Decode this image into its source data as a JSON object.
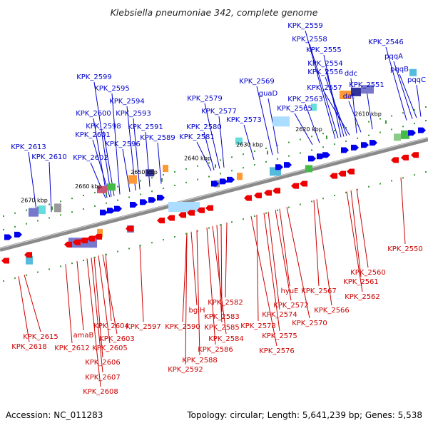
{
  "title": "Klebsiella pneumoniae 342, complete genome",
  "footer": {
    "accession": "Accession: NC_011283",
    "summary": "Topology: circular; Length: 5,641,239 bp; Genes: 5,538"
  },
  "colors": {
    "top_label": "#0000cc",
    "bottom_label": "#cc0000",
    "forward_gene": "#0000ee",
    "reverse_gene": "#ee0000",
    "backbone": "#888888"
  },
  "ticks": [
    "2610 kbp",
    "2620 kbp",
    "2630 kbp",
    "2640 kbp",
    "2650 kbp",
    "2660 kbp",
    "2670 kbp"
  ],
  "top_labels": [
    "KPK_2559",
    "KPK_2558",
    "KPK_2555",
    "KPK_2554",
    "KPK_2556",
    "KPK_2557",
    "KPK_2546",
    "pqqA",
    "pqqB",
    "pqqC",
    "ddc",
    "dat",
    "KPK_2551",
    "KPK_2569",
    "guaD",
    "KPK_2563",
    "KPK_2565",
    "KPK_2579",
    "KPK_2577",
    "KPK_2573",
    "KPK_2580",
    "KPK_2581",
    "KPK_2599",
    "KPK_2595",
    "KPK_2594",
    "KPK_2600",
    "KPK_2593",
    "KPK_2598",
    "KPK_2591",
    "KPK_2601",
    "KPK_2596",
    "KPK_2589",
    "KPK_2602",
    "KPK_2613",
    "KPK_2610"
  ],
  "bottom_labels": [
    "KPK_2550",
    "KPK_2560",
    "KPK_2561",
    "KPK_2562",
    "KPK_2567",
    "KPK_2566",
    "hyuE",
    "KPK_2572",
    "KPK_2574",
    "KPK_2570",
    "KPK_2578",
    "KPK_2575",
    "KPK_2576",
    "KPK_2582",
    "KPK_2583",
    "KPK_2585",
    "KPK_2584",
    "bglH",
    "KPK_2590",
    "KPK_2586",
    "KPK_2588",
    "KPK_2592",
    "KPK_2597",
    "KPK_2604",
    "KPK_2603",
    "KPK_2605",
    "KPK_2606",
    "KPK_2607",
    "KPK_2608",
    "amaB",
    "KPK_2612",
    "KPK_2615",
    "KPK_2618"
  ]
}
